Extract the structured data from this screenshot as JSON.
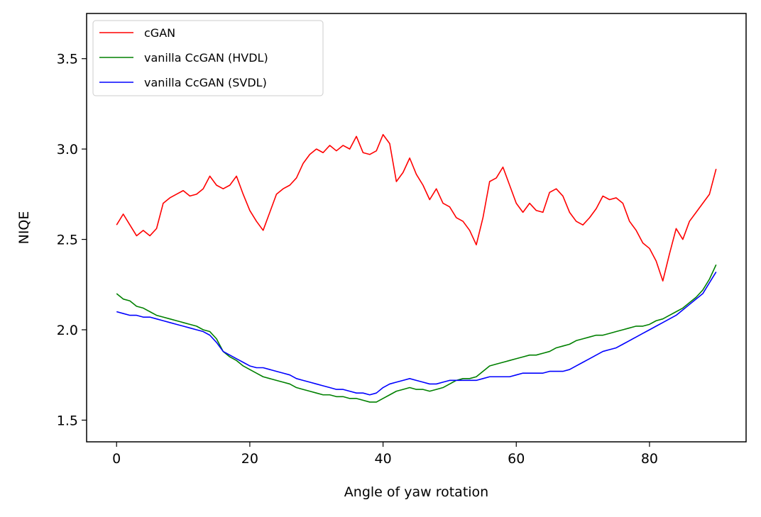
{
  "chart_data": {
    "type": "line",
    "title": "",
    "xlabel": "Angle of yaw rotation",
    "ylabel": "NIQE",
    "xlim": [
      -4.5,
      94.5
    ],
    "ylim": [
      1.38,
      3.75
    ],
    "xticks": [
      0,
      20,
      40,
      60,
      80
    ],
    "xtick_labels": [
      "0",
      "20",
      "40",
      "60",
      "80"
    ],
    "yticks": [
      1.5,
      2.0,
      2.5,
      3.0,
      3.5
    ],
    "ytick_labels": [
      "1.5",
      "2.0",
      "2.5",
      "3.0",
      "3.5"
    ],
    "grid": false,
    "legend_position": "top-left",
    "series": [
      {
        "name": "cGAN",
        "color": "#ff0000",
        "x": [
          0,
          1,
          2,
          3,
          4,
          5,
          6,
          7,
          8,
          9,
          10,
          11,
          12,
          13,
          14,
          15,
          16,
          17,
          18,
          19,
          20,
          21,
          22,
          23,
          24,
          25,
          26,
          27,
          28,
          29,
          30,
          31,
          32,
          33,
          34,
          35,
          36,
          37,
          38,
          39,
          40,
          41,
          42,
          43,
          44,
          45,
          46,
          47,
          48,
          49,
          50,
          51,
          52,
          53,
          54,
          55,
          56,
          57,
          58,
          59,
          60,
          61,
          62,
          63,
          64,
          65,
          66,
          67,
          68,
          69,
          70,
          71,
          72,
          73,
          74,
          75,
          76,
          77,
          78,
          79,
          80,
          81,
          82,
          83,
          84,
          85,
          86,
          87,
          88,
          89,
          90
        ],
        "y": [
          2.58,
          2.64,
          2.58,
          2.52,
          2.55,
          2.52,
          2.56,
          2.7,
          2.73,
          2.75,
          2.77,
          2.74,
          2.75,
          2.78,
          2.85,
          2.8,
          2.78,
          2.8,
          2.85,
          2.75,
          2.66,
          2.6,
          2.55,
          2.65,
          2.75,
          2.78,
          2.8,
          2.84,
          2.92,
          2.97,
          3.0,
          2.98,
          3.02,
          2.99,
          3.02,
          3.0,
          3.07,
          2.98,
          2.97,
          2.99,
          3.08,
          3.03,
          2.82,
          2.87,
          2.95,
          2.86,
          2.8,
          2.72,
          2.78,
          2.7,
          2.68,
          2.62,
          2.6,
          2.55,
          2.47,
          2.62,
          2.82,
          2.84,
          2.9,
          2.8,
          2.7,
          2.65,
          2.7,
          2.66,
          2.65,
          2.76,
          2.78,
          2.74,
          2.65,
          2.6,
          2.58,
          2.62,
          2.67,
          2.74,
          2.72,
          2.73,
          2.7,
          2.6,
          2.55,
          2.48,
          2.45,
          2.38,
          2.27,
          2.42,
          2.56,
          2.5,
          2.6,
          2.65,
          2.7,
          2.75,
          2.89
        ]
      },
      {
        "name": "vanilla CcGAN (HVDL)",
        "color": "#008000",
        "x": [
          0,
          1,
          2,
          3,
          4,
          5,
          6,
          7,
          8,
          9,
          10,
          11,
          12,
          13,
          14,
          15,
          16,
          17,
          18,
          19,
          20,
          21,
          22,
          23,
          24,
          25,
          26,
          27,
          28,
          29,
          30,
          31,
          32,
          33,
          34,
          35,
          36,
          37,
          38,
          39,
          40,
          41,
          42,
          43,
          44,
          45,
          46,
          47,
          48,
          49,
          50,
          51,
          52,
          53,
          54,
          55,
          56,
          57,
          58,
          59,
          60,
          61,
          62,
          63,
          64,
          65,
          66,
          67,
          68,
          69,
          70,
          71,
          72,
          73,
          74,
          75,
          76,
          77,
          78,
          79,
          80,
          81,
          82,
          83,
          84,
          85,
          86,
          87,
          88,
          89,
          90
        ],
        "y": [
          2.2,
          2.17,
          2.16,
          2.13,
          2.12,
          2.1,
          2.08,
          2.07,
          2.06,
          2.05,
          2.04,
          2.03,
          2.02,
          2.0,
          1.99,
          1.95,
          1.88,
          1.85,
          1.83,
          1.8,
          1.78,
          1.76,
          1.74,
          1.73,
          1.72,
          1.71,
          1.7,
          1.68,
          1.67,
          1.66,
          1.65,
          1.64,
          1.64,
          1.63,
          1.63,
          1.62,
          1.62,
          1.61,
          1.6,
          1.6,
          1.62,
          1.64,
          1.66,
          1.67,
          1.68,
          1.67,
          1.67,
          1.66,
          1.67,
          1.68,
          1.7,
          1.72,
          1.73,
          1.73,
          1.74,
          1.77,
          1.8,
          1.81,
          1.82,
          1.83,
          1.84,
          1.85,
          1.86,
          1.86,
          1.87,
          1.88,
          1.9,
          1.91,
          1.92,
          1.94,
          1.95,
          1.96,
          1.97,
          1.97,
          1.98,
          1.99,
          2.0,
          2.01,
          2.02,
          2.02,
          2.03,
          2.05,
          2.06,
          2.08,
          2.1,
          2.12,
          2.15,
          2.18,
          2.22,
          2.28,
          2.36
        ]
      },
      {
        "name": "vanilla CcGAN (SVDL)",
        "color": "#0000ff",
        "x": [
          0,
          1,
          2,
          3,
          4,
          5,
          6,
          7,
          8,
          9,
          10,
          11,
          12,
          13,
          14,
          15,
          16,
          17,
          18,
          19,
          20,
          21,
          22,
          23,
          24,
          25,
          26,
          27,
          28,
          29,
          30,
          31,
          32,
          33,
          34,
          35,
          36,
          37,
          38,
          39,
          40,
          41,
          42,
          43,
          44,
          45,
          46,
          47,
          48,
          49,
          50,
          51,
          52,
          53,
          54,
          55,
          56,
          57,
          58,
          59,
          60,
          61,
          62,
          63,
          64,
          65,
          66,
          67,
          68,
          69,
          70,
          71,
          72,
          73,
          74,
          75,
          76,
          77,
          78,
          79,
          80,
          81,
          82,
          83,
          84,
          85,
          86,
          87,
          88,
          89,
          90
        ],
        "y": [
          2.1,
          2.09,
          2.08,
          2.08,
          2.07,
          2.07,
          2.06,
          2.05,
          2.04,
          2.03,
          2.02,
          2.01,
          2.0,
          1.99,
          1.97,
          1.93,
          1.88,
          1.86,
          1.84,
          1.82,
          1.8,
          1.79,
          1.79,
          1.78,
          1.77,
          1.76,
          1.75,
          1.73,
          1.72,
          1.71,
          1.7,
          1.69,
          1.68,
          1.67,
          1.67,
          1.66,
          1.65,
          1.65,
          1.64,
          1.65,
          1.68,
          1.7,
          1.71,
          1.72,
          1.73,
          1.72,
          1.71,
          1.7,
          1.7,
          1.71,
          1.72,
          1.72,
          1.72,
          1.72,
          1.72,
          1.73,
          1.74,
          1.74,
          1.74,
          1.74,
          1.75,
          1.76,
          1.76,
          1.76,
          1.76,
          1.77,
          1.77,
          1.77,
          1.78,
          1.8,
          1.82,
          1.84,
          1.86,
          1.88,
          1.89,
          1.9,
          1.92,
          1.94,
          1.96,
          1.98,
          2.0,
          2.02,
          2.04,
          2.06,
          2.08,
          2.11,
          2.14,
          2.17,
          2.2,
          2.26,
          2.32
        ]
      }
    ]
  }
}
